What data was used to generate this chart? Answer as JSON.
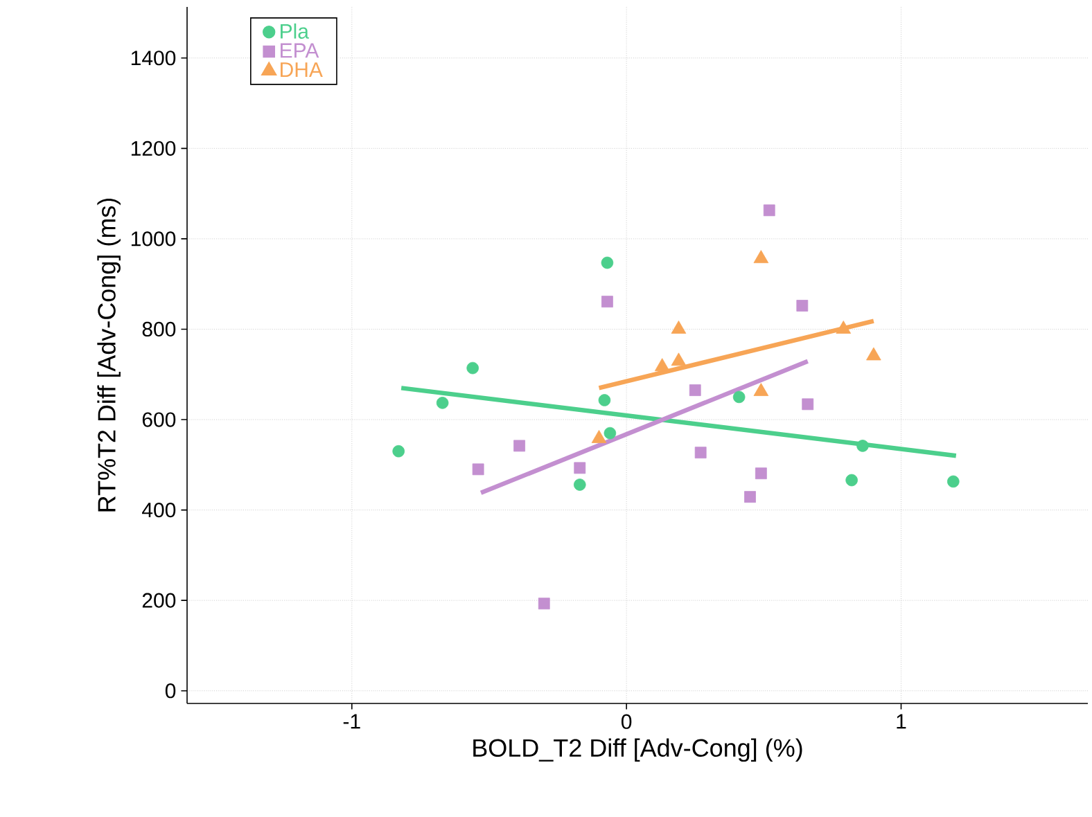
{
  "chart_data": {
    "type": "scatter",
    "xlabel": "BOLD_T2 Diff [Adv-Cong] (%)",
    "ylabel": "RT%T2 Diff [Adv-Cong] (ms)",
    "xlim": [
      -1.6,
      1.68
    ],
    "ylim": [
      -28,
      1513
    ],
    "xticks": [
      -1,
      0,
      1
    ],
    "yticks": [
      0,
      200,
      400,
      600,
      800,
      1000,
      1200,
      1400
    ],
    "grid": true,
    "legend": "top left",
    "series": [
      {
        "name": "Pla",
        "color": "#4ccf8c",
        "marker": "circle",
        "x": [
          -0.83,
          -0.67,
          -0.56,
          -0.07,
          -0.08,
          -0.06,
          -0.17,
          0.41,
          0.86,
          0.82,
          1.19
        ],
        "values": [
          530,
          637,
          714,
          947,
          643,
          570,
          456,
          650,
          542,
          466,
          463
        ]
      },
      {
        "name": "EPA",
        "color": "#c38fd0",
        "marker": "square",
        "x": [
          -0.54,
          -0.39,
          -0.17,
          -0.3,
          -0.07,
          0.52,
          0.64,
          0.25,
          0.27,
          0.66,
          0.49,
          0.45
        ],
        "values": [
          490,
          542,
          493,
          193,
          861,
          1063,
          852,
          665,
          527,
          634,
          481,
          429
        ]
      },
      {
        "name": "DHA",
        "color": "#f7a556",
        "marker": "triangle",
        "x": [
          0.49,
          0.19,
          0.13,
          0.19,
          0.49,
          0.79,
          0.9,
          -0.1
        ],
        "values": [
          956,
          800,
          717,
          729,
          662,
          800,
          741,
          558
        ]
      },
      {
        "type": "line",
        "color": "#4ccf8c",
        "x": [
          -0.82,
          1.2
        ],
        "values": [
          670,
          520
        ]
      },
      {
        "type": "line",
        "color": "#c38fd0",
        "x": [
          -0.53,
          0.66
        ],
        "values": [
          438,
          729
        ]
      },
      {
        "type": "line",
        "color": "#f7a556",
        "x": [
          -0.1,
          0.9
        ],
        "values": [
          670,
          818
        ]
      }
    ]
  }
}
